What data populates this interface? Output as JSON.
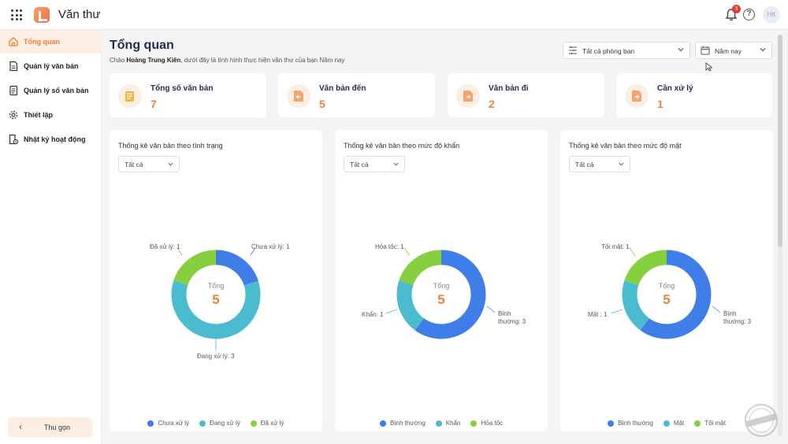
{
  "app": {
    "title": "Văn thư",
    "notifications_count": "3",
    "help_glyph": "?",
    "avatar_initials": "HK"
  },
  "sidebar": {
    "items": [
      {
        "label": "Tổng quan",
        "icon": "home-icon",
        "active": true
      },
      {
        "label": "Quản lý văn bản",
        "icon": "document-icon"
      },
      {
        "label": "Quản lý sổ văn bản",
        "icon": "book-icon"
      },
      {
        "label": "Thiết lập",
        "icon": "gear-icon"
      },
      {
        "label": "Nhật ký hoạt động",
        "icon": "activity-log-icon"
      }
    ],
    "collapse_label": "Thu gọn"
  },
  "header": {
    "title": "Tổng quan",
    "greeting_prefix": "Chào ",
    "user_name": "Hoàng Trung Kiên",
    "greeting_suffix": ", dưới đây là tình hình thực hiện văn thư của bạn Năm nay",
    "department_select": "Tất cả phòng ban",
    "period_select": "Năm nay"
  },
  "stats": [
    {
      "label": "Tổng số văn bản",
      "value": "7",
      "icon": "document-stack-icon"
    },
    {
      "label": "Văn bản đến",
      "value": "5",
      "icon": "incoming-document-icon"
    },
    {
      "label": "Văn bản đi",
      "value": "2",
      "icon": "outgoing-document-icon"
    },
    {
      "label": "Cần xử lý",
      "value": "1",
      "icon": "pending-document-icon"
    }
  ],
  "colors": {
    "accent": "#e8833a",
    "blue": "#3f7de8",
    "teal": "#4bbcd0",
    "green": "#86cf3e"
  },
  "cards": [
    {
      "title": "Thống kê văn bản theo tình trạng",
      "filter": "Tất cả",
      "center_label": "Tổng",
      "center_value": "5",
      "callouts": [
        "Chưa xử lý: 1",
        "Đang xử lý: 3",
        "Đã xử lý: 1"
      ],
      "legend": [
        "Chưa xử lý",
        "Đang xử lý",
        "Đã xử lý"
      ]
    },
    {
      "title": "Thống kê văn bản theo mức độ khẩn",
      "filter": "Tất cả",
      "center_label": "Tổng",
      "center_value": "5",
      "callouts": [
        "Bình",
        "thường: 3",
        "Khẩn: 1",
        "Hỏa tốc: 1"
      ],
      "legend": [
        "Bình thường",
        "Khẩn",
        "Hỏa tốc"
      ]
    },
    {
      "title": "Thống kê văn bản theo mức độ mật",
      "filter": "Tất cả",
      "center_label": "Tổng",
      "center_value": "5",
      "callouts": [
        "Bình",
        "thường: 3",
        "Mật : 1",
        "Tối mật: 1"
      ],
      "legend": [
        "Bình thường",
        "Mật",
        "Tối mật"
      ]
    }
  ],
  "chart_data": [
    {
      "type": "pie",
      "categories": [
        "Chưa xử lý",
        "Đang xử lý",
        "Đã xử lý"
      ],
      "values": [
        1,
        3,
        1
      ],
      "total": 5,
      "colors": [
        "#3f7de8",
        "#4bbcd0",
        "#86cf3e"
      ],
      "legend_position": "bottom"
    },
    {
      "type": "pie",
      "categories": [
        "Bình thường",
        "Khẩn",
        "Hỏa tốc"
      ],
      "values": [
        3,
        1,
        1
      ],
      "total": 5,
      "colors": [
        "#3f7de8",
        "#4bbcd0",
        "#86cf3e"
      ],
      "legend_position": "bottom"
    },
    {
      "type": "pie",
      "categories": [
        "Bình thường",
        "Mật",
        "Tối mật"
      ],
      "values": [
        3,
        1,
        1
      ],
      "total": 5,
      "colors": [
        "#3f7de8",
        "#4bbcd0",
        "#86cf3e"
      ],
      "legend_position": "bottom"
    }
  ]
}
